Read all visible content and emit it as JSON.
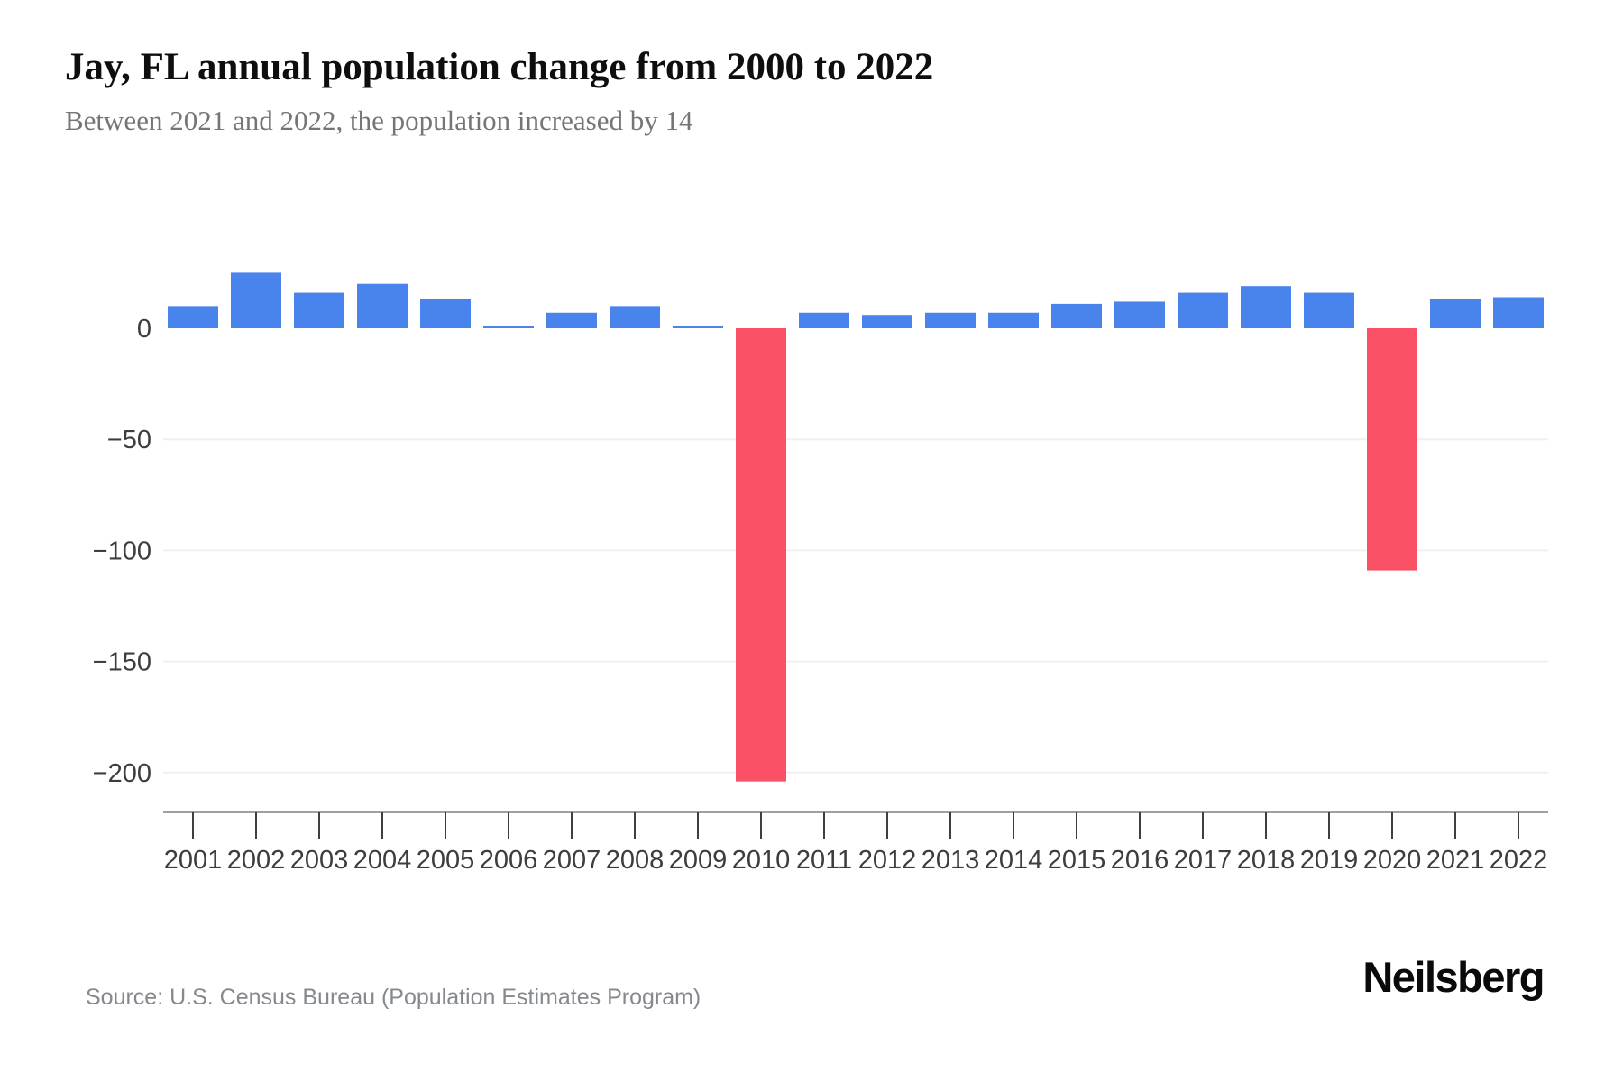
{
  "header": {
    "title": "Jay, FL annual population change from 2000 to 2022",
    "subtitle": "Between 2021 and 2022, the population increased by 14"
  },
  "footer": {
    "source": "Source: U.S. Census Bureau (Population Estimates Program)",
    "brand": "Neilsberg"
  },
  "chart_data": {
    "type": "bar",
    "title": "Jay, FL annual population change from 2000 to 2022",
    "subtitle": "Between 2021 and 2022, the population increased by 14",
    "series_name": "Annual population change",
    "categories": [
      "2001",
      "2002",
      "2003",
      "2004",
      "2005",
      "2006",
      "2007",
      "2008",
      "2009",
      "2010",
      "2011",
      "2012",
      "2013",
      "2014",
      "2015",
      "2016",
      "2017",
      "2018",
      "2019",
      "2020",
      "2021",
      "2022"
    ],
    "values": [
      10,
      25,
      16,
      20,
      13,
      1,
      7,
      10,
      1,
      -204,
      7,
      6,
      7,
      7,
      11,
      12,
      16,
      19,
      16,
      -109,
      13,
      14
    ],
    "xlabel": "",
    "ylabel": "",
    "yticks": [
      0,
      -50,
      -100,
      -150,
      -200
    ],
    "ylim": [
      -210,
      30
    ],
    "grid": "horizontal-only-below-zero",
    "legend": false,
    "colors": {
      "positive_bar": "#4884ec",
      "negative_bar": "#fa5166",
      "gridline": "#f0f0f0",
      "axis": "#3f3f3f",
      "tick_text": "#3d3d3d"
    }
  }
}
